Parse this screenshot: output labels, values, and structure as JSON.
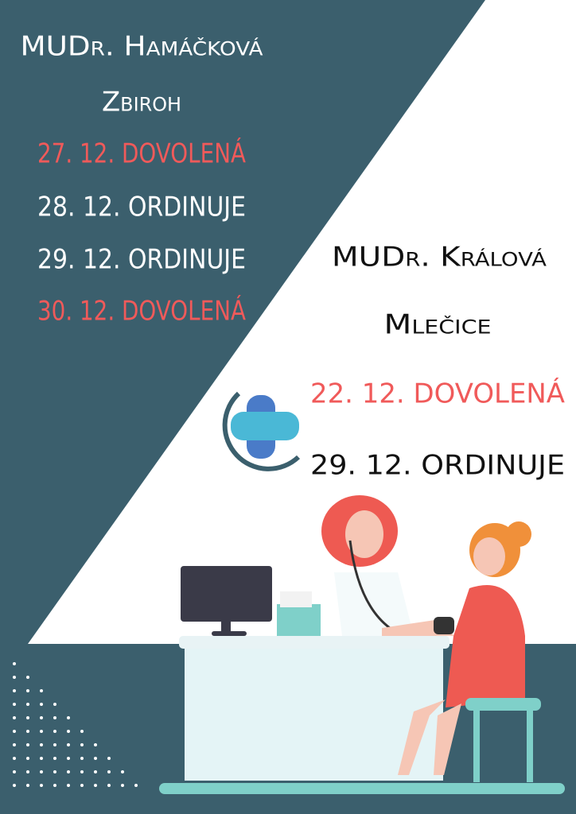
{
  "left": {
    "doctor": "MUDr. Hamáčková",
    "place": "Zbiroh",
    "days": [
      {
        "text": "27. 12. DOVOLENÁ",
        "status": "off"
      },
      {
        "text": "28. 12. ORDINUJE",
        "status": "on"
      },
      {
        "text": "29. 12. ORDINUJE",
        "status": "on"
      },
      {
        "text": "30. 12. DOVOLENÁ",
        "status": "off"
      }
    ]
  },
  "right": {
    "doctor": "MUDr. Králová",
    "place": "Mlečice",
    "days": [
      {
        "text": "22. 12. DOVOLENÁ",
        "status": "off"
      },
      {
        "text": "29. 12. ORDINUJE",
        "status": "on"
      }
    ]
  }
}
